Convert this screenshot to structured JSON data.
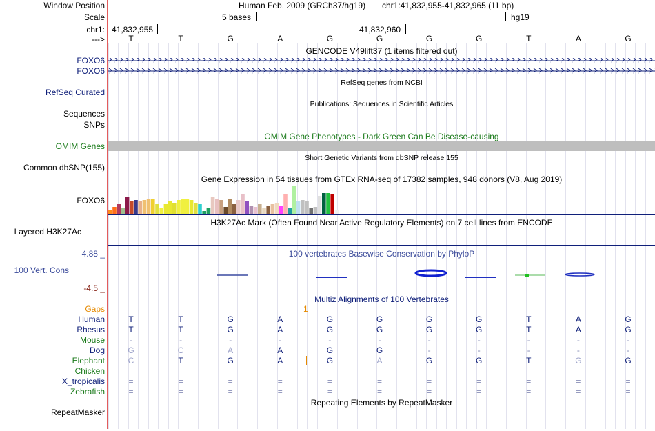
{
  "labels": {
    "window_position": "Window Position",
    "scale": "Scale",
    "chr": "chr1:",
    "strand": "--->",
    "foxo6_a": "FOXO6",
    "foxo6_b": "FOXO6",
    "refseq": "RefSeq Curated",
    "sequences": "Sequences",
    "snps": "SNPs",
    "omim": "OMIM Genes",
    "common_dbsnp": "Common dbSNP(155)",
    "foxo6_gtex": "FOXO6",
    "h3k27ac": "Layered H3K27Ac",
    "cons_max": "4.88 _",
    "cons_label": "100 Vert. Cons",
    "cons_min": "-4.5 _",
    "gaps": "Gaps",
    "repeatmasker": "RepeatMasker"
  },
  "header": {
    "assembly": "Human Feb. 2009 (GRCh37/hg19)",
    "position": "chr1:41,832,955-41,832,965 (11 bp)",
    "scale_text": "5 bases",
    "scale_db": "hg19",
    "coord_1": "41,832,955",
    "coord_2": "41,832,960"
  },
  "bases": [
    "T",
    "T",
    "G",
    "A",
    "G",
    "G",
    "G",
    "G",
    "T",
    "A",
    "G"
  ],
  "tracks": {
    "gencode": "GENCODE V49lift37 (1 items filtered out)",
    "refseq": "RefSeq genes from NCBI",
    "publications": "Publications: Sequences in Scientific Articles",
    "omim": "OMIM Gene Phenotypes - Dark Green Can Be Disease-causing",
    "dbsnp": "Short Genetic Variants from dbSNP release 155",
    "gtex": "Gene Expression in 54 tissues from GTEx RNA-seq of 17382 samples, 948 donors (V8, Aug 2019)",
    "h3k27ac": "H3K27Ac Mark (Often Found Near Active Regulatory Elements) on 7 cell lines from ENCODE",
    "phylop": "100 vertebrates Basewise Conservation by PhyloP",
    "multiz": "Multiz Alignments of 100 Vertebrates",
    "gap_marker": "1",
    "repeatmasker": "Repeating Elements by RepeatMasker"
  },
  "species": [
    {
      "name": "Human",
      "color": "#10207a",
      "bases": [
        "T",
        "T",
        "G",
        "A",
        "G",
        "G",
        "G",
        "G",
        "T",
        "A",
        "G"
      ]
    },
    {
      "name": "Rhesus",
      "color": "#10207a",
      "bases": [
        "T",
        "T",
        "G",
        "A",
        "G",
        "G",
        "G",
        "G",
        "T",
        "A",
        "G"
      ]
    },
    {
      "name": "Mouse",
      "color": "#1a7a1a",
      "bases": [
        "-",
        "-",
        "-",
        "-",
        "-",
        "-",
        "-",
        "-",
        "-",
        "-",
        "-"
      ]
    },
    {
      "name": "Dog",
      "color": "#10207a",
      "bases": [
        "G",
        "C",
        "A",
        "A",
        "G",
        "G",
        "-",
        "-",
        "-",
        "-",
        "-"
      ]
    },
    {
      "name": "Elephant",
      "color": "#1a7a1a",
      "bases": [
        "C",
        "T",
        "G",
        "A",
        "G",
        "A",
        "G",
        "G",
        "T",
        "G",
        "G"
      ]
    },
    {
      "name": "Chicken",
      "color": "#1a7a1a",
      "bases": [
        "=",
        "=",
        "=",
        "=",
        "=",
        "=",
        "=",
        "=",
        "=",
        "=",
        "="
      ]
    },
    {
      "name": "X_tropicalis",
      "color": "#10207a",
      "bases": [
        "=",
        "=",
        "=",
        "=",
        "=",
        "=",
        "=",
        "=",
        "=",
        "=",
        "="
      ]
    },
    {
      "name": "Zebrafish",
      "color": "#1a7a1a",
      "bases": [
        "=",
        "=",
        "=",
        "=",
        "=",
        "=",
        "=",
        "=",
        "=",
        "=",
        "="
      ]
    }
  ],
  "colors": {
    "label_blue": "#10207a",
    "label_green": "#1a7a1a",
    "gaps_orange": "#e68a00",
    "cons_red": "#8b2a1e",
    "omim_bar": "#bebebe",
    "gene_line": "#10207a"
  },
  "gtex_bars": [
    {
      "value": 0.15,
      "color": "#ff8c1a"
    },
    {
      "value": 0.25,
      "color": "#ff6f1a"
    },
    {
      "value": 0.35,
      "color": "#b03a5f"
    },
    {
      "value": 0.2,
      "color": "#9fbf8f"
    },
    {
      "value": 0.6,
      "color": "#8b1a4a"
    },
    {
      "value": 0.45,
      "color": "#c44a2a"
    },
    {
      "value": 0.5,
      "color": "#3a3a8a"
    },
    {
      "value": 0.45,
      "color": "#e8b08a"
    },
    {
      "value": 0.5,
      "color": "#f0c070"
    },
    {
      "value": 0.55,
      "color": "#f0c070"
    },
    {
      "value": 0.55,
      "color": "#f0d030"
    },
    {
      "value": 0.35,
      "color": "#e0e040"
    },
    {
      "value": 0.2,
      "color": "#f0f040"
    },
    {
      "value": 0.35,
      "color": "#e8e830"
    },
    {
      "value": 0.45,
      "color": "#e8e830"
    },
    {
      "value": 0.4,
      "color": "#e0e030"
    },
    {
      "value": 0.5,
      "color": "#f0f040"
    },
    {
      "value": 0.55,
      "color": "#f0f040"
    },
    {
      "value": 0.55,
      "color": "#f0f040"
    },
    {
      "value": 0.5,
      "color": "#e8e830"
    },
    {
      "value": 0.4,
      "color": "#e0e040"
    },
    {
      "value": 0.35,
      "color": "#30d0d0"
    },
    {
      "value": 0.1,
      "color": "#20a060"
    },
    {
      "value": 0.2,
      "color": "#20a060"
    },
    {
      "value": 0.6,
      "color": "#e8c8c0"
    },
    {
      "value": 0.55,
      "color": "#e8c0c0"
    },
    {
      "value": 0.5,
      "color": "#c8a080"
    },
    {
      "value": 0.25,
      "color": "#6b4a2a"
    },
    {
      "value": 0.55,
      "color": "#b08a60"
    },
    {
      "value": 0.35,
      "color": "#8a6040"
    },
    {
      "value": 0.5,
      "color": "#e8c8c8"
    },
    {
      "value": 0.7,
      "color": "#e8c0c8"
    },
    {
      "value": 0.45,
      "color": "#9050c0"
    },
    {
      "value": 0.3,
      "color": "#b090b0"
    },
    {
      "value": 0.25,
      "color": "#e8c0d0"
    },
    {
      "value": 0.35,
      "color": "#c8b090"
    },
    {
      "value": 0.2,
      "color": "#e8d8c0"
    },
    {
      "value": 0.3,
      "color": "#8a6040"
    },
    {
      "value": 0.35,
      "color": "#e8c0a0"
    },
    {
      "value": 0.4,
      "color": "#f0d8c0"
    },
    {
      "value": 0.3,
      "color": "#ff40ff"
    },
    {
      "value": 0.7,
      "color": "#ffb0b0"
    },
    {
      "value": 0.2,
      "color": "#20a0a0"
    },
    {
      "value": 1.0,
      "color": "#b0f0a0"
    },
    {
      "value": 0.45,
      "color": "#c0e0f0"
    },
    {
      "value": 0.5,
      "color": "#c0c0c0"
    },
    {
      "value": 0.45,
      "color": "#c0c0c0"
    },
    {
      "value": 0.2,
      "color": "#707070"
    },
    {
      "value": 0.25,
      "color": "#c0c0c0"
    },
    {
      "value": 0.65,
      "color": "#e0e0e0"
    },
    {
      "value": 0.75,
      "color": "#006040"
    },
    {
      "value": 0.75,
      "color": "#20c040"
    },
    {
      "value": 0.7,
      "color": "#c00000"
    },
    {
      "value": 0.15,
      "color": "#f0f0f0"
    }
  ]
}
